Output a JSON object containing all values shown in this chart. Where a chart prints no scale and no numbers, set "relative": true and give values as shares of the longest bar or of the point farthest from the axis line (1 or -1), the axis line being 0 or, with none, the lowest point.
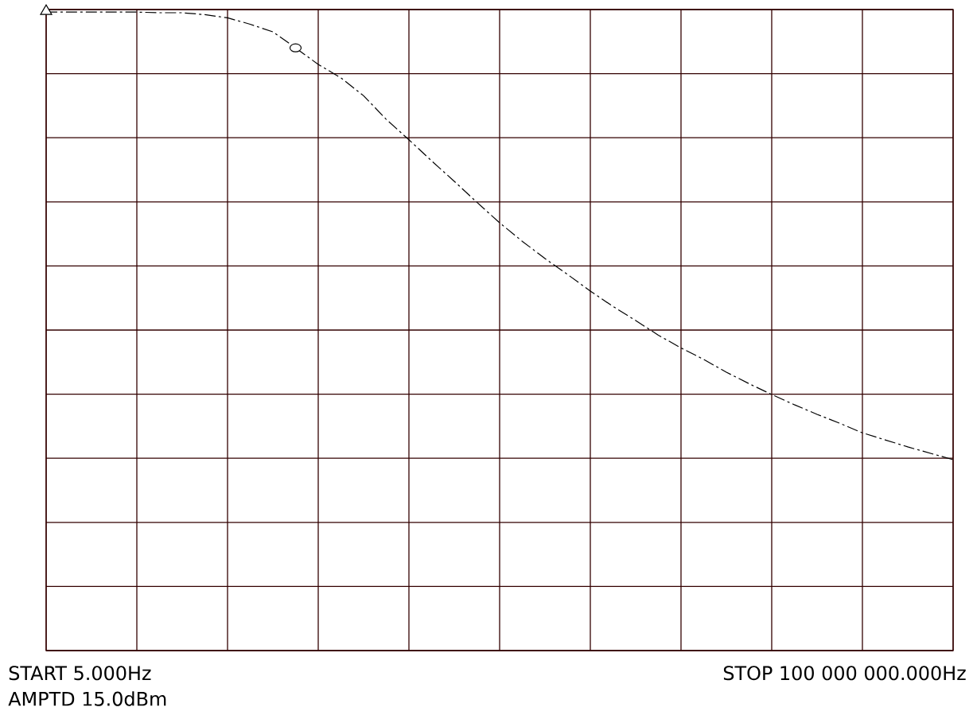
{
  "chart_data": {
    "type": "line",
    "relative": true,
    "grid": true,
    "tick_labels": false,
    "categories": [
      null,
      null,
      null,
      null,
      null,
      null,
      null,
      null,
      null,
      null,
      null,
      null,
      null,
      null,
      null,
      null,
      null,
      null,
      null,
      null,
      null,
      null,
      null,
      null,
      null,
      null,
      null,
      null,
      null,
      null,
      null,
      null,
      null,
      null,
      null,
      null,
      null,
      null,
      null,
      null,
      null
    ],
    "series": [
      {
        "color": "#000000",
        "line_style": "dashed",
        "values": [
          1.0,
          1.0,
          1.0,
          1.0,
          1.0,
          0.999,
          0.999,
          0.996,
          0.991,
          0.981,
          0.969,
          0.944,
          0.918,
          0.897,
          0.869,
          0.832,
          0.8,
          0.767,
          0.735,
          0.702,
          0.67,
          0.641,
          0.614,
          0.589,
          0.563,
          0.539,
          0.517,
          0.494,
          0.474,
          0.456,
          0.436,
          0.418,
          0.401,
          0.385,
          0.37,
          0.356,
          0.341,
          0.33,
          0.319,
          0.309,
          0.299
        ]
      }
    ],
    "annotations": [
      "START 5.000Hz",
      "AMPTD 15.0dBm",
      "STOP 100 000 000.000Hz"
    ]
  }
}
